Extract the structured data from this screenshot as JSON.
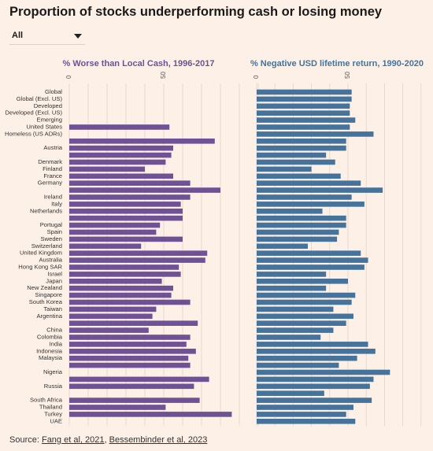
{
  "title": "Proportion of stocks underperforming cash or losing money",
  "filter": {
    "selected": "All",
    "icon": "chevron-down-icon"
  },
  "source": {
    "prefix": "Source: ",
    "link1": "Fang et al, 2021",
    "separator": ", ",
    "link2": "Bessembinder et al, 2023"
  },
  "chart_data": [
    {
      "type": "bar",
      "orientation": "horizontal",
      "title": "% Worse than Local Cash, 1996-2017",
      "color": "#6f5196",
      "xlim": [
        0,
        100
      ],
      "ticks": [
        0,
        50
      ],
      "grid": true,
      "categories": [
        "Global",
        "Global (Excl. US)",
        "Developed",
        "Developed (Excl. US)",
        "Emerging",
        "United States",
        "Homeless (US ADRs)",
        "",
        "Austria",
        "",
        "Denmark",
        "Finland",
        "France",
        "Germany",
        "",
        "Ireland",
        "Italy",
        "Netherlands",
        "",
        "Portugal",
        "Spain",
        "Sweden",
        "Switzerland",
        "United Kingdom",
        "Australia",
        "Hong Kong SAR",
        "Israel",
        "Japan",
        "New Zealand",
        "Singapore",
        "South Korea",
        "Taiwan",
        "Argentina",
        "",
        "China",
        "Colombia",
        "India",
        "Indonesia",
        "Malaysia",
        "",
        "Nigeria",
        "",
        "Russia",
        "",
        "South Africa",
        "Thailand",
        "Turkey",
        "UAE"
      ],
      "values": [
        null,
        null,
        null,
        null,
        null,
        53,
        null,
        77,
        55,
        54,
        51,
        40,
        55,
        64,
        80,
        64,
        59,
        60,
        60,
        48,
        46,
        60,
        38,
        73,
        72,
        58,
        59,
        49,
        55,
        54,
        64,
        46,
        44,
        68,
        42,
        64,
        62,
        67,
        63,
        64,
        null,
        74,
        66,
        null,
        69,
        51,
        86,
        null
      ]
    },
    {
      "type": "bar",
      "orientation": "horizontal",
      "title": "% Negative USD lifetime return, 1990-2020",
      "color": "#46739c",
      "xlim": [
        0,
        100
      ],
      "ticks": [
        0,
        50
      ],
      "grid": true,
      "categories": [
        "Global",
        "Global (Excl. US)",
        "Developed",
        "Developed (Excl. US)",
        "Emerging",
        "United States",
        "Homeless (US ADRs)",
        "",
        "Austria",
        "",
        "Denmark",
        "Finland",
        "France",
        "Germany",
        "",
        "Ireland",
        "Italy",
        "Netherlands",
        "",
        "Portugal",
        "Spain",
        "Sweden",
        "Switzerland",
        "United Kingdom",
        "Australia",
        "Hong Kong SAR",
        "Israel",
        "Japan",
        "New Zealand",
        "Singapore",
        "South Korea",
        "Taiwan",
        "Argentina",
        "",
        "China",
        "Colombia",
        "India",
        "Indonesia",
        "Malaysia",
        "",
        "Nigeria",
        "",
        "Russia",
        "",
        "South Africa",
        "Thailand",
        "Turkey",
        "UAE"
      ],
      "values": [
        52,
        52,
        51,
        51,
        54,
        51,
        64,
        49,
        49,
        38,
        43,
        30,
        46,
        57,
        69,
        52,
        59,
        36,
        49,
        49,
        45,
        44,
        28,
        57,
        61,
        59,
        38,
        50,
        38,
        54,
        52,
        42,
        53,
        49,
        42,
        35,
        61,
        65,
        55,
        45,
        73,
        64,
        62,
        37,
        63,
        53,
        49,
        54
      ]
    }
  ]
}
